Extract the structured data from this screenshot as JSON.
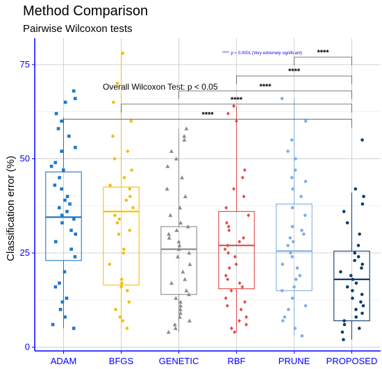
{
  "chart_data": {
    "type": "box",
    "title": "Method Comparison",
    "subtitle": "Pairwise Wilcoxon tests",
    "xlabel": "",
    "ylabel": "Classification error (%)",
    "ylim": [
      -1,
      82
    ],
    "yticks": [
      0,
      25,
      50,
      75
    ],
    "grid": true,
    "categories": [
      "ADAM",
      "BFGS",
      "GENETIC",
      "RBF",
      "PRUNE",
      "PROPOSED"
    ],
    "colors": [
      "#1f78c8",
      "#f0c010",
      "#8c8c8c",
      "#e04848",
      "#80aee8",
      "#0a3c6e"
    ],
    "markers": [
      "square",
      "circle",
      "triangle",
      "diamond",
      "circle",
      "circle"
    ],
    "boxes": [
      {
        "q1": 23,
        "median": 34.5,
        "q3": 46.5,
        "whisker_low": 5,
        "whisker_high": 61
      },
      {
        "q1": 16.5,
        "median": 36,
        "q3": 42.5,
        "whisker_low": 5,
        "whisker_high": 78
      },
      {
        "q1": 14,
        "median": 26,
        "q3": 32,
        "whisker_low": 4,
        "whisker_high": 58
      },
      {
        "q1": 15.5,
        "median": 27,
        "q3": 36,
        "whisker_low": 4,
        "whisker_high": 64
      },
      {
        "q1": 15,
        "median": 25.5,
        "q3": 38,
        "whisker_low": 3,
        "whisker_high": 66
      },
      {
        "q1": 7,
        "median": 18,
        "q3": 25.5,
        "whisker_low": 2,
        "whisker_high": 41
      }
    ],
    "points": [
      [
        5,
        6,
        8,
        10,
        12,
        13,
        16,
        17,
        20,
        24,
        26,
        28,
        30,
        31,
        33,
        34,
        35,
        36,
        37,
        38,
        39,
        40,
        42,
        43,
        45,
        47,
        48,
        49,
        52,
        53,
        56,
        58,
        60,
        62,
        65,
        66,
        68
      ],
      [
        5,
        7,
        8,
        10,
        12,
        15,
        16,
        17,
        18,
        22,
        25,
        26,
        30,
        31,
        33,
        34,
        35,
        37,
        39,
        40,
        42,
        43,
        45,
        47,
        50,
        52,
        56,
        60,
        65,
        70,
        78
      ],
      [
        4,
        5,
        6,
        7,
        8,
        9,
        10,
        11,
        12,
        13,
        14,
        15,
        17,
        18,
        20,
        22,
        24,
        25,
        26,
        27,
        28,
        29,
        30,
        31,
        32,
        33,
        35,
        37,
        40,
        42,
        45,
        48,
        50,
        52,
        55,
        56,
        58
      ],
      [
        4,
        5,
        6,
        7,
        8,
        10,
        11,
        12,
        13,
        15,
        16,
        17,
        18,
        19,
        21,
        22,
        24,
        25,
        26,
        27,
        28,
        29,
        31,
        32,
        33,
        35,
        37,
        40,
        42,
        45,
        47,
        60,
        62,
        64
      ],
      [
        3,
        5,
        7,
        8,
        10,
        11,
        13,
        15,
        16,
        18,
        19,
        21,
        22,
        24,
        25,
        27,
        28,
        29,
        30,
        31,
        32,
        35,
        37,
        40,
        42,
        44,
        45,
        47,
        50,
        52,
        55,
        60,
        66
      ],
      [
        2,
        4,
        5,
        6,
        7,
        8,
        9,
        10,
        11,
        12,
        13,
        14,
        15,
        16,
        17,
        18,
        19,
        20,
        21,
        22,
        23,
        24,
        25,
        27,
        30,
        33,
        36,
        38,
        40,
        42,
        55
      ]
    ],
    "comparisons": [
      {
        "from": "PRUNE",
        "to": "PROPOSED",
        "label": "****",
        "y": 77
      },
      {
        "from": "RBF",
        "to": "PROPOSED",
        "label": "****",
        "y": 72
      },
      {
        "from": "GENETIC",
        "to": "PROPOSED",
        "label": "****",
        "y": 68
      },
      {
        "from": "BFGS",
        "to": "PROPOSED",
        "label": "****",
        "y": 64.5
      },
      {
        "from": "ADAM",
        "to": "PROPOSED",
        "label": "****",
        "y": 60.5
      }
    ],
    "annotations": {
      "overall_test": "Overall Wilcoxon Test: p < 0.05",
      "legend_note": "****: p < 0.0001 (Very extremely significant)"
    }
  }
}
